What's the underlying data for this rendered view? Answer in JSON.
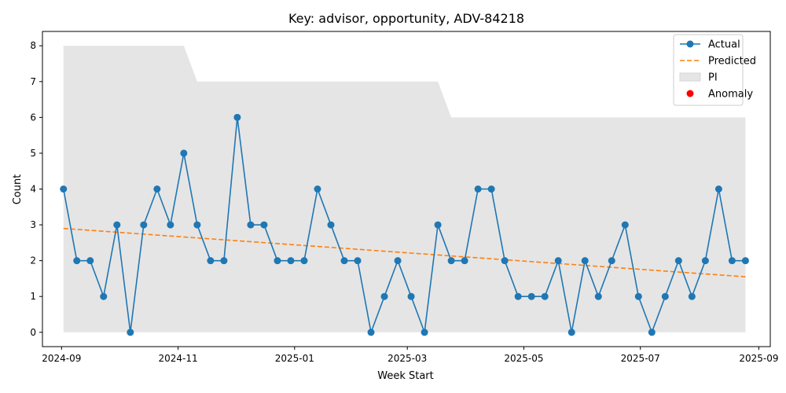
{
  "chart_data": {
    "type": "line",
    "title": "Key: advisor, opportunity, ADV-84218",
    "xlabel": "Week Start",
    "ylabel": "Count",
    "x_range": [
      "2024-08-22",
      "2025-09-07"
    ],
    "ylim": [
      -0.4,
      8.4
    ],
    "x_ticks": [
      {
        "date": "2024-09-01",
        "label": "2024-09"
      },
      {
        "date": "2024-11-01",
        "label": "2024-11"
      },
      {
        "date": "2025-01-01",
        "label": "2025-01"
      },
      {
        "date": "2025-03-01",
        "label": "2025-03"
      },
      {
        "date": "2025-05-01",
        "label": "2025-05"
      },
      {
        "date": "2025-07-01",
        "label": "2025-07"
      },
      {
        "date": "2025-09-01",
        "label": "2025-09"
      }
    ],
    "y_ticks": [
      0,
      1,
      2,
      3,
      4,
      5,
      6,
      7,
      8
    ],
    "x": [
      "2024-09-02",
      "2024-09-09",
      "2024-09-16",
      "2024-09-23",
      "2024-09-30",
      "2024-10-07",
      "2024-10-14",
      "2024-10-21",
      "2024-10-28",
      "2024-11-04",
      "2024-11-11",
      "2024-11-18",
      "2024-11-25",
      "2024-12-02",
      "2024-12-09",
      "2024-12-16",
      "2024-12-23",
      "2024-12-30",
      "2025-01-06",
      "2025-01-13",
      "2025-01-20",
      "2025-01-27",
      "2025-02-03",
      "2025-02-10",
      "2025-02-17",
      "2025-02-24",
      "2025-03-03",
      "2025-03-10",
      "2025-03-17",
      "2025-03-24",
      "2025-03-31",
      "2025-04-07",
      "2025-04-14",
      "2025-04-21",
      "2025-04-28",
      "2025-05-05",
      "2025-05-12",
      "2025-05-19",
      "2025-05-26",
      "2025-06-02",
      "2025-06-09",
      "2025-06-16",
      "2025-06-23",
      "2025-06-30",
      "2025-07-07",
      "2025-07-14",
      "2025-07-21",
      "2025-07-28",
      "2025-08-04",
      "2025-08-11",
      "2025-08-18",
      "2025-08-25"
    ],
    "series": [
      {
        "name": "Actual",
        "color": "#1f77b4",
        "style": "solid line with circle markers",
        "values": [
          4,
          2,
          2,
          1,
          3,
          0,
          3,
          4,
          3,
          5,
          3,
          2,
          2,
          6,
          3,
          3,
          2,
          2,
          2,
          4,
          3,
          2,
          2,
          0,
          1,
          2,
          1,
          0,
          3,
          2,
          2,
          4,
          4,
          2,
          1,
          1,
          1,
          2,
          0,
          2,
          1,
          2,
          3,
          1,
          0,
          1,
          2,
          1,
          2,
          4,
          2,
          2
        ]
      },
      {
        "name": "Predicted",
        "color": "#ff7f0e",
        "style": "dashed line",
        "start": 2.9,
        "end": 1.55
      }
    ],
    "prediction_interval": {
      "name": "PI",
      "color": "#e5e5e5",
      "lower": 0,
      "upper_segments": [
        {
          "from": "2024-09-02",
          "to": "2024-11-04",
          "value": 8
        },
        {
          "from": "2024-11-11",
          "to": "2025-03-17",
          "value": 7
        },
        {
          "from": "2025-03-24",
          "to": "2025-08-25",
          "value": 6
        }
      ]
    },
    "anomalies": {
      "name": "Anomaly",
      "color": "#ff0000",
      "points": []
    },
    "legend": {
      "position": "top-right",
      "entries": [
        {
          "label": "Actual",
          "kind": "line-marker",
          "color": "#1f77b4"
        },
        {
          "label": "Predicted",
          "kind": "dashed",
          "color": "#ff7f0e"
        },
        {
          "label": "PI",
          "kind": "patch",
          "color": "#e5e5e5"
        },
        {
          "label": "Anomaly",
          "kind": "dot",
          "color": "#ff0000"
        }
      ]
    },
    "grid": false
  }
}
